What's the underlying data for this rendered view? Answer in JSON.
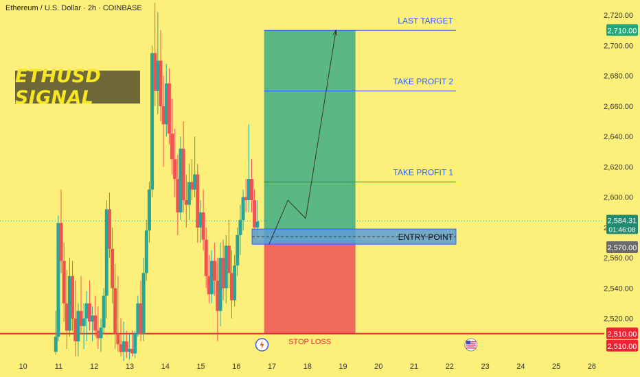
{
  "header": {
    "title": "Ethereum / U.S. Dollar · 2h · COINBASE"
  },
  "banner": {
    "text": "ETHUSD SIGNAL"
  },
  "annotations": {
    "last_target": "LAST TARGET",
    "take_profit_2": "TAKE PROFIT 2",
    "take_profit_1": "TAKE PROFIT 1",
    "entry_point": "ENTRY POINT",
    "stop_loss": "STOP LOSS"
  },
  "price_tags": {
    "target": "2,710.00",
    "current": "2,584.31",
    "countdown": "01:46:08",
    "entry": "2,570.00",
    "stop1": "2,510.00",
    "stop2": "2,510.00"
  },
  "colors": {
    "background": "#fdf07a",
    "up_candle": "#26a69a",
    "down_candle": "#ef5350",
    "profit_zone": "#5cb883",
    "loss_zone": "#f06a5e",
    "entry_zone": "#5b9bd5",
    "level_line": "#2962ff",
    "stop_line": "#ee2233",
    "target_tag": "#22a77a",
    "entry_tag": "#6b6b6b",
    "stop_tag": "#ee2233",
    "current_tag": "#1f8a70"
  },
  "icons": [
    "lightning-event-icon",
    "us-flag-event-icon"
  ],
  "chart_data": {
    "type": "candlestick",
    "title": "",
    "timeframe": "2h",
    "ylim": [
      2495,
      2730
    ],
    "yticks": [
      2520,
      2540,
      2560,
      2580,
      2600,
      2620,
      2640,
      2660,
      2680,
      2700,
      2720
    ],
    "ytick_labels": [
      "2,520.00",
      "2,540.00",
      "2,560.00",
      "2,580.00",
      "2,600.00",
      "2,620.00",
      "2,640.00",
      "2,660.00",
      "2,680.00",
      "2,700.00",
      "2,720.00"
    ],
    "xticks": [
      10,
      11,
      12,
      13,
      14,
      15,
      16,
      17,
      18,
      19,
      20,
      21,
      22,
      23,
      24,
      25,
      26
    ],
    "xlim": [
      9.35,
      26.35
    ],
    "levels": {
      "last_target": 2710,
      "take_profit_2": 2670,
      "take_profit_1": 2610,
      "entry": 2570,
      "entry_zone": [
        2569,
        2579
      ],
      "stop_loss": 2510,
      "current_price": 2584.31
    },
    "position_zone": {
      "x_start": 16.78,
      "x_end": 19.35
    },
    "projected_path": [
      {
        "x": 16.92,
        "y": 2569
      },
      {
        "x": 17.45,
        "y": 2598
      },
      {
        "x": 17.95,
        "y": 2586
      },
      {
        "x": 18.8,
        "y": 2710
      }
    ],
    "candles": [
      {
        "t": 10.92,
        "o": 2498,
        "h": 2525,
        "l": 2496,
        "c": 2508
      },
      {
        "t": 10.99,
        "o": 2508,
        "h": 2588,
        "l": 2505,
        "c": 2583
      },
      {
        "t": 11.07,
        "o": 2583,
        "h": 2605,
        "l": 2550,
        "c": 2558
      },
      {
        "t": 11.15,
        "o": 2558,
        "h": 2570,
        "l": 2518,
        "c": 2530
      },
      {
        "t": 11.23,
        "o": 2530,
        "h": 2552,
        "l": 2500,
        "c": 2512
      },
      {
        "t": 11.31,
        "o": 2512,
        "h": 2560,
        "l": 2508,
        "c": 2548
      },
      {
        "t": 11.39,
        "o": 2548,
        "h": 2558,
        "l": 2512,
        "c": 2520
      },
      {
        "t": 11.47,
        "o": 2520,
        "h": 2545,
        "l": 2495,
        "c": 2505
      },
      {
        "t": 11.55,
        "o": 2505,
        "h": 2530,
        "l": 2495,
        "c": 2525
      },
      {
        "t": 11.63,
        "o": 2525,
        "h": 2548,
        "l": 2510,
        "c": 2515
      },
      {
        "t": 11.71,
        "o": 2515,
        "h": 2530,
        "l": 2500,
        "c": 2520
      },
      {
        "t": 11.79,
        "o": 2520,
        "h": 2538,
        "l": 2505,
        "c": 2530
      },
      {
        "t": 11.87,
        "o": 2530,
        "h": 2545,
        "l": 2512,
        "c": 2518
      },
      {
        "t": 11.95,
        "o": 2518,
        "h": 2528,
        "l": 2505,
        "c": 2522
      },
      {
        "t": 12.03,
        "o": 2522,
        "h": 2535,
        "l": 2508,
        "c": 2512
      },
      {
        "t": 12.11,
        "o": 2512,
        "h": 2528,
        "l": 2500,
        "c": 2507
      },
      {
        "t": 12.19,
        "o": 2507,
        "h": 2520,
        "l": 2498,
        "c": 2514
      },
      {
        "t": 12.27,
        "o": 2514,
        "h": 2540,
        "l": 2510,
        "c": 2535
      },
      {
        "t": 12.35,
        "o": 2535,
        "h": 2598,
        "l": 2520,
        "c": 2592
      },
      {
        "t": 12.43,
        "o": 2592,
        "h": 2603,
        "l": 2560,
        "c": 2566
      },
      {
        "t": 12.51,
        "o": 2566,
        "h": 2580,
        "l": 2530,
        "c": 2540
      },
      {
        "t": 12.59,
        "o": 2540,
        "h": 2556,
        "l": 2500,
        "c": 2510
      },
      {
        "t": 12.67,
        "o": 2510,
        "h": 2548,
        "l": 2498,
        "c": 2503
      },
      {
        "t": 12.75,
        "o": 2503,
        "h": 2520,
        "l": 2495,
        "c": 2498
      },
      {
        "t": 12.83,
        "o": 2498,
        "h": 2518,
        "l": 2492,
        "c": 2505
      },
      {
        "t": 12.91,
        "o": 2505,
        "h": 2512,
        "l": 2494,
        "c": 2498
      },
      {
        "t": 12.99,
        "o": 2498,
        "h": 2510,
        "l": 2493,
        "c": 2500
      },
      {
        "t": 13.07,
        "o": 2500,
        "h": 2512,
        "l": 2495,
        "c": 2497
      },
      {
        "t": 13.15,
        "o": 2497,
        "h": 2512,
        "l": 2494,
        "c": 2510
      },
      {
        "t": 13.23,
        "o": 2510,
        "h": 2535,
        "l": 2508,
        "c": 2530
      },
      {
        "t": 13.31,
        "o": 2530,
        "h": 2545,
        "l": 2505,
        "c": 2510
      },
      {
        "t": 13.39,
        "o": 2510,
        "h": 2560,
        "l": 2505,
        "c": 2550
      },
      {
        "t": 13.47,
        "o": 2550,
        "h": 2585,
        "l": 2545,
        "c": 2578
      },
      {
        "t": 13.55,
        "o": 2578,
        "h": 2610,
        "l": 2570,
        "c": 2605
      },
      {
        "t": 13.63,
        "o": 2605,
        "h": 2700,
        "l": 2600,
        "c": 2695
      },
      {
        "t": 13.71,
        "o": 2695,
        "h": 2728,
        "l": 2660,
        "c": 2670
      },
      {
        "t": 13.79,
        "o": 2670,
        "h": 2722,
        "l": 2655,
        "c": 2690
      },
      {
        "t": 13.87,
        "o": 2690,
        "h": 2710,
        "l": 2650,
        "c": 2660
      },
      {
        "t": 13.95,
        "o": 2660,
        "h": 2680,
        "l": 2620,
        "c": 2648
      },
      {
        "t": 14.03,
        "o": 2648,
        "h": 2688,
        "l": 2640,
        "c": 2675
      },
      {
        "t": 14.11,
        "o": 2675,
        "h": 2685,
        "l": 2635,
        "c": 2642
      },
      {
        "t": 14.19,
        "o": 2642,
        "h": 2665,
        "l": 2615,
        "c": 2625
      },
      {
        "t": 14.27,
        "o": 2625,
        "h": 2645,
        "l": 2600,
        "c": 2612
      },
      {
        "t": 14.35,
        "o": 2612,
        "h": 2628,
        "l": 2575,
        "c": 2590
      },
      {
        "t": 14.43,
        "o": 2590,
        "h": 2640,
        "l": 2585,
        "c": 2632
      },
      {
        "t": 14.51,
        "o": 2632,
        "h": 2650,
        "l": 2590,
        "c": 2598
      },
      {
        "t": 14.59,
        "o": 2598,
        "h": 2615,
        "l": 2580,
        "c": 2595
      },
      {
        "t": 14.67,
        "o": 2595,
        "h": 2622,
        "l": 2585,
        "c": 2610
      },
      {
        "t": 14.75,
        "o": 2610,
        "h": 2625,
        "l": 2598,
        "c": 2605
      },
      {
        "t": 14.83,
        "o": 2605,
        "h": 2640,
        "l": 2600,
        "c": 2615
      },
      {
        "t": 14.91,
        "o": 2615,
        "h": 2622,
        "l": 2570,
        "c": 2580
      },
      {
        "t": 14.99,
        "o": 2580,
        "h": 2598,
        "l": 2570,
        "c": 2590
      },
      {
        "t": 15.07,
        "o": 2590,
        "h": 2605,
        "l": 2565,
        "c": 2572
      },
      {
        "t": 15.15,
        "o": 2572,
        "h": 2580,
        "l": 2540,
        "c": 2548
      },
      {
        "t": 15.23,
        "o": 2548,
        "h": 2562,
        "l": 2530,
        "c": 2536
      },
      {
        "t": 15.31,
        "o": 2536,
        "h": 2565,
        "l": 2530,
        "c": 2558
      },
      {
        "t": 15.39,
        "o": 2558,
        "h": 2570,
        "l": 2535,
        "c": 2545
      },
      {
        "t": 15.47,
        "o": 2545,
        "h": 2560,
        "l": 2505,
        "c": 2525
      },
      {
        "t": 15.55,
        "o": 2525,
        "h": 2570,
        "l": 2515,
        "c": 2560
      },
      {
        "t": 15.63,
        "o": 2560,
        "h": 2572,
        "l": 2532,
        "c": 2540
      },
      {
        "t": 15.71,
        "o": 2540,
        "h": 2575,
        "l": 2530,
        "c": 2568
      },
      {
        "t": 15.79,
        "o": 2568,
        "h": 2585,
        "l": 2540,
        "c": 2550
      },
      {
        "t": 15.87,
        "o": 2550,
        "h": 2565,
        "l": 2520,
        "c": 2532
      },
      {
        "t": 15.95,
        "o": 2532,
        "h": 2562,
        "l": 2528,
        "c": 2555
      },
      {
        "t": 16.03,
        "o": 2555,
        "h": 2580,
        "l": 2548,
        "c": 2575
      },
      {
        "t": 16.11,
        "o": 2575,
        "h": 2595,
        "l": 2562,
        "c": 2585
      },
      {
        "t": 16.19,
        "o": 2585,
        "h": 2605,
        "l": 2578,
        "c": 2600
      },
      {
        "t": 16.27,
        "o": 2600,
        "h": 2612,
        "l": 2590,
        "c": 2598
      },
      {
        "t": 16.35,
        "o": 2598,
        "h": 2648,
        "l": 2590,
        "c": 2612
      },
      {
        "t": 16.43,
        "o": 2612,
        "h": 2625,
        "l": 2590,
        "c": 2598
      },
      {
        "t": 16.51,
        "o": 2598,
        "h": 2605,
        "l": 2572,
        "c": 2580
      },
      {
        "t": 16.59,
        "o": 2580,
        "h": 2598,
        "l": 2575,
        "c": 2584
      }
    ]
  }
}
